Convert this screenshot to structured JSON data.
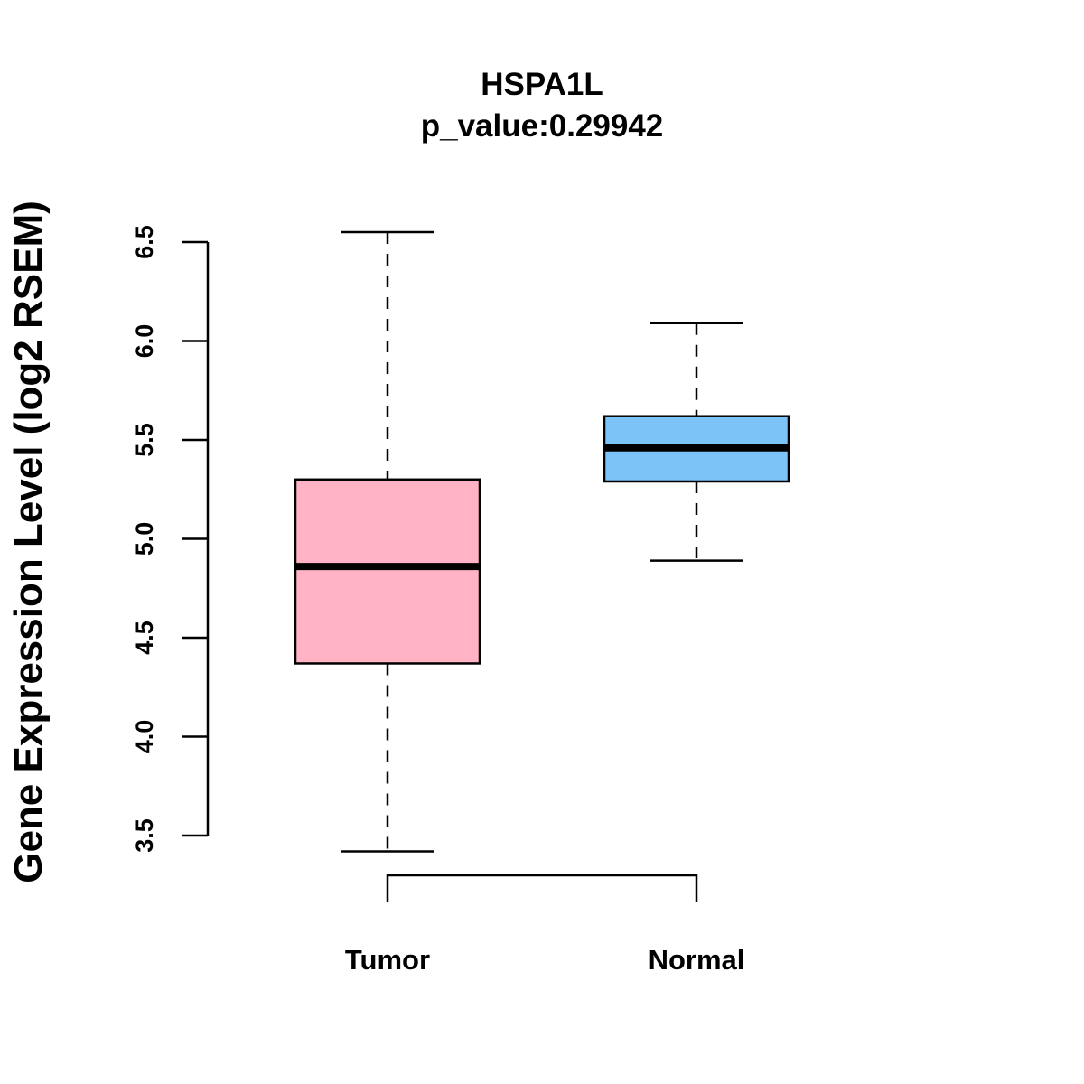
{
  "chart_data": {
    "type": "boxplot",
    "title": "HSPA1L",
    "subtitle": "p_value:0.29942",
    "xlabel": "",
    "ylabel": "Gene Expression Level (log2 RSEM)",
    "ylim": [
      3.5,
      6.5
    ],
    "yticks": [
      3.5,
      4.0,
      4.5,
      5.0,
      5.5,
      6.0,
      6.5
    ],
    "ytick_labels": [
      "3.5",
      "4.0",
      "4.5",
      "5.0",
      "5.5",
      "6.0",
      "6.5"
    ],
    "categories": [
      "Tumor",
      "Normal"
    ],
    "boxes": [
      {
        "name": "Tumor",
        "whisker_low": 3.42,
        "q1": 4.37,
        "median": 4.86,
        "q3": 5.3,
        "whisker_high": 6.55,
        "color": "#ffb3c4"
      },
      {
        "name": "Normal",
        "whisker_low": 4.89,
        "q1": 5.29,
        "median": 5.46,
        "q3": 5.62,
        "whisker_high": 6.09,
        "color": "#7cc3f7"
      }
    ],
    "comparison_bracket": [
      "Tumor",
      "Normal"
    ],
    "grid": false
  }
}
